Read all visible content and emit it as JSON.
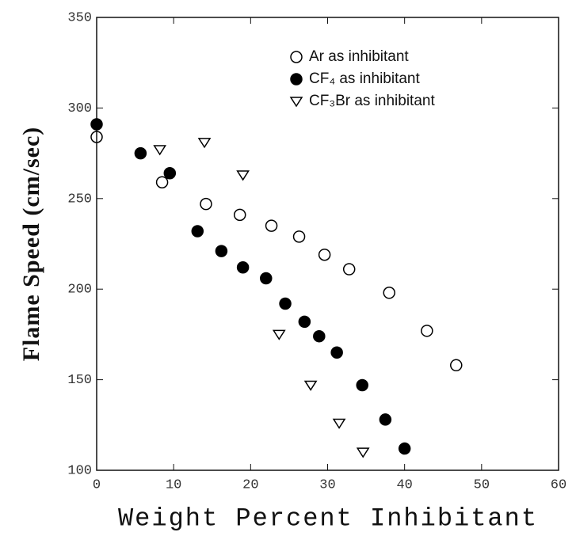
{
  "chart_data": {
    "type": "scatter",
    "xlabel": "Weight Percent Inhibitant",
    "ylabel": "Flame Speed (cm/sec)",
    "xlim": [
      0,
      60
    ],
    "xticks": [
      0,
      10,
      20,
      30,
      40,
      50,
      60
    ],
    "ylim": [
      100,
      350
    ],
    "yticks": [
      100,
      150,
      200,
      250,
      300,
      350
    ],
    "legend": "upper right",
    "series": [
      {
        "name": "Ar as inhibitant",
        "color": "#000000",
        "marker": "open-circle",
        "x": [
          0,
          8.5,
          14.2,
          18.6,
          22.7,
          26.3,
          29.6,
          32.8,
          38,
          42.9,
          46.7
        ],
        "values": [
          284,
          259,
          247,
          241,
          235,
          229,
          219,
          211,
          198,
          177,
          158
        ]
      },
      {
        "name": "CF₄ as inhibitant",
        "color": "#000000",
        "marker": "filled-circle",
        "x": [
          0,
          5.7,
          9.5,
          13.1,
          16.2,
          19,
          22,
          24.5,
          27,
          28.9,
          31.2,
          34.5,
          37.5,
          40
        ],
        "values": [
          291,
          275,
          264,
          232,
          221,
          212,
          206,
          192,
          182,
          174,
          165,
          147,
          128,
          112
        ]
      },
      {
        "name": "CF₃Br as inhibitant",
        "color": "#000000",
        "marker": "triangle-down",
        "x": [
          8.2,
          14,
          19,
          23.7,
          27.8,
          31.5,
          34.6
        ],
        "values": [
          277,
          281,
          263,
          175,
          147,
          126,
          110
        ]
      }
    ]
  }
}
